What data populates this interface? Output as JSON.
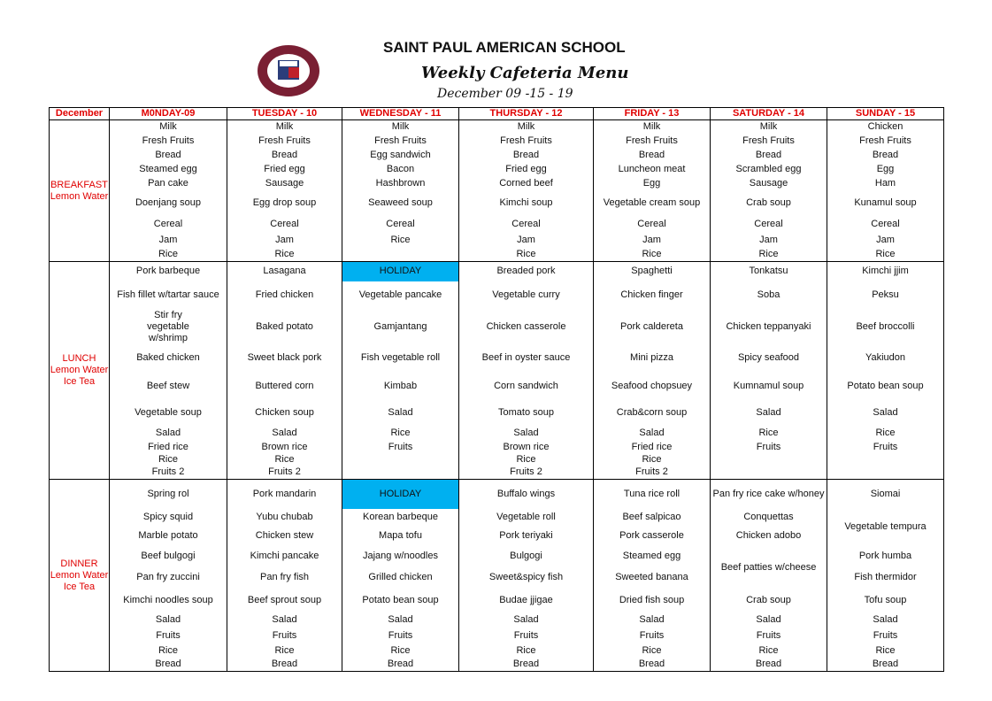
{
  "header": {
    "school": "SAINT PAUL AMERICAN SCHOOL",
    "subtitle": "Weekly Cafeteria Menu",
    "dates": "December 09 -15 - 19",
    "logo_text": "SAINT PAUL AMERICAN SCHOOL"
  },
  "colors": {
    "header_text": "#e00000",
    "holiday": "#00b0f0"
  },
  "corner_label": "December",
  "meals": [
    {
      "label": "BREAKFAST Lemon Water"
    },
    {
      "label": "LUNCH Lemon Water Ice Tea"
    },
    {
      "label": "DINNER Lemon Water Ice Tea"
    }
  ],
  "days": [
    {
      "name": "M0NDAY-09",
      "breakfast": [
        "Milk",
        "Fresh Fruits",
        "Bread",
        "Steamed egg",
        "Pan cake",
        "Doenjang soup",
        "Cereal",
        "Jam",
        "Rice"
      ],
      "lunch": [
        "Pork barbeque",
        "Fish fillet w/tartar sauce",
        "Stir fry vegetable w/shrimp",
        "Baked chicken",
        "Beef stew",
        "Vegetable soup",
        "Salad",
        "Fried rice",
        "Rice",
        "Fruits 2"
      ],
      "dinner": [
        "Spring rol",
        "Spicy squid",
        "Marble potato",
        "Beef bulgogi",
        "Pan fry zuccini",
        "Kimchi noodles soup",
        "Salad",
        "Fruits",
        "Rice",
        "Bread"
      ]
    },
    {
      "name": "TUESDAY - 10",
      "breakfast": [
        "Milk",
        "Fresh Fruits",
        "Bread",
        "Fried egg",
        "Sausage",
        "Egg drop soup",
        "Cereal",
        "Jam",
        "Rice"
      ],
      "lunch": [
        "Lasagana",
        "Fried chicken",
        "Baked potato",
        "Sweet black pork",
        "Buttered corn",
        "Chicken soup",
        "Salad",
        "Brown rice",
        "Rice",
        "Fruits 2"
      ],
      "dinner": [
        "Pork mandarin",
        "Yubu chubab",
        "Chicken stew",
        "Kimchi pancake",
        "Pan fry fish",
        "Beef sprout soup",
        "Salad",
        "Fruits",
        "Rice",
        "Bread"
      ]
    },
    {
      "name": "WEDNESDAY - 11",
      "breakfast": [
        "Milk",
        "Fresh Fruits",
        "Egg sandwich",
        "Bacon",
        "Hashbrown",
        "Seaweed soup",
        "Cereal",
        "Rice",
        ""
      ],
      "lunch": [
        "HOLIDAY",
        "Vegetable pancake",
        "Gamjantang",
        "Fish vegetable roll",
        "Kimbab",
        "Salad",
        "Rice",
        "Fruits",
        "",
        ""
      ],
      "dinner": [
        "HOLIDAY",
        "Korean barbeque",
        "Mapa tofu",
        "Jajang w/noodles",
        "Grilled chicken",
        "Potato bean soup",
        "Salad",
        "Fruits",
        "Rice",
        "Bread"
      ],
      "holiday": true
    },
    {
      "name": "THURSDAY - 12",
      "breakfast": [
        "Milk",
        "Fresh Fruits",
        "Bread",
        "Fried egg",
        "Corned beef",
        "Kimchi soup",
        "Cereal",
        "Jam",
        "Rice"
      ],
      "lunch": [
        "Breaded pork",
        "Vegetable curry",
        "Chicken casserole",
        "Beef in oyster sauce",
        "Corn sandwich",
        "Tomato soup",
        "Salad",
        "Brown rice",
        "Rice",
        "Fruits 2"
      ],
      "dinner": [
        "Buffalo wings",
        "Vegetable roll",
        "Pork teriyaki",
        "Bulgogi",
        "Sweet&spicy fish",
        "Budae jjigae",
        "Salad",
        "Fruits",
        "Rice",
        "Bread"
      ]
    },
    {
      "name": "FRIDAY - 13",
      "breakfast": [
        "Milk",
        "Fresh Fruits",
        "Bread",
        "Luncheon meat",
        "Egg",
        "Vegetable cream soup",
        "Cereal",
        "Jam",
        "Rice"
      ],
      "lunch": [
        "Spaghetti",
        "Chicken finger",
        "Pork caldereta",
        "Mini pizza",
        "Seafood chopsuey",
        "Crab&corn soup",
        "Salad",
        "Fried rice",
        "Rice",
        "Fruits 2"
      ],
      "dinner": [
        "Tuna rice roll",
        "Beef salpicao",
        "Pork casserole",
        "Steamed egg",
        "Sweeted banana",
        "Dried fish soup",
        "Salad",
        "Fruits",
        "Rice",
        "Bread"
      ]
    },
    {
      "name": "SATURDAY - 14",
      "breakfast": [
        "Milk",
        "Fresh Fruits",
        "Bread",
        "Scrambled egg",
        "Sausage",
        "Crab soup",
        "Cereal",
        "Jam",
        "Rice"
      ],
      "lunch": [
        "Tonkatsu",
        "Soba",
        "Chicken teppanyaki",
        "Spicy seafood",
        "Kumnamul soup",
        "Salad",
        "Rice",
        "Fruits",
        "",
        ""
      ],
      "dinner": [
        "Pan fry rice cake w/honey",
        "Conquettas",
        "Chicken adobo",
        "Beef patties w/cheese",
        null,
        "Crab soup",
        "Salad",
        "Fruits",
        "Rice",
        "Bread"
      ]
    },
    {
      "name": "SUNDAY - 15",
      "breakfast": [
        "Chicken",
        "Fresh Fruits",
        "Bread",
        "Egg",
        "Ham",
        "Kunamul soup",
        "Cereal",
        "Jam",
        "Rice"
      ],
      "lunch": [
        "Kimchi jjim",
        "Peksu",
        "Beef broccolli",
        "Yakiudon",
        "Potato bean soup",
        "Salad",
        "Rice",
        "Fruits",
        "",
        ""
      ],
      "dinner": [
        "Siomai",
        "Vegetable tempura",
        null,
        "Pork humba",
        "Fish thermidor",
        "Tofu soup",
        "Salad",
        "Fruits",
        "Rice",
        "Bread"
      ]
    }
  ]
}
